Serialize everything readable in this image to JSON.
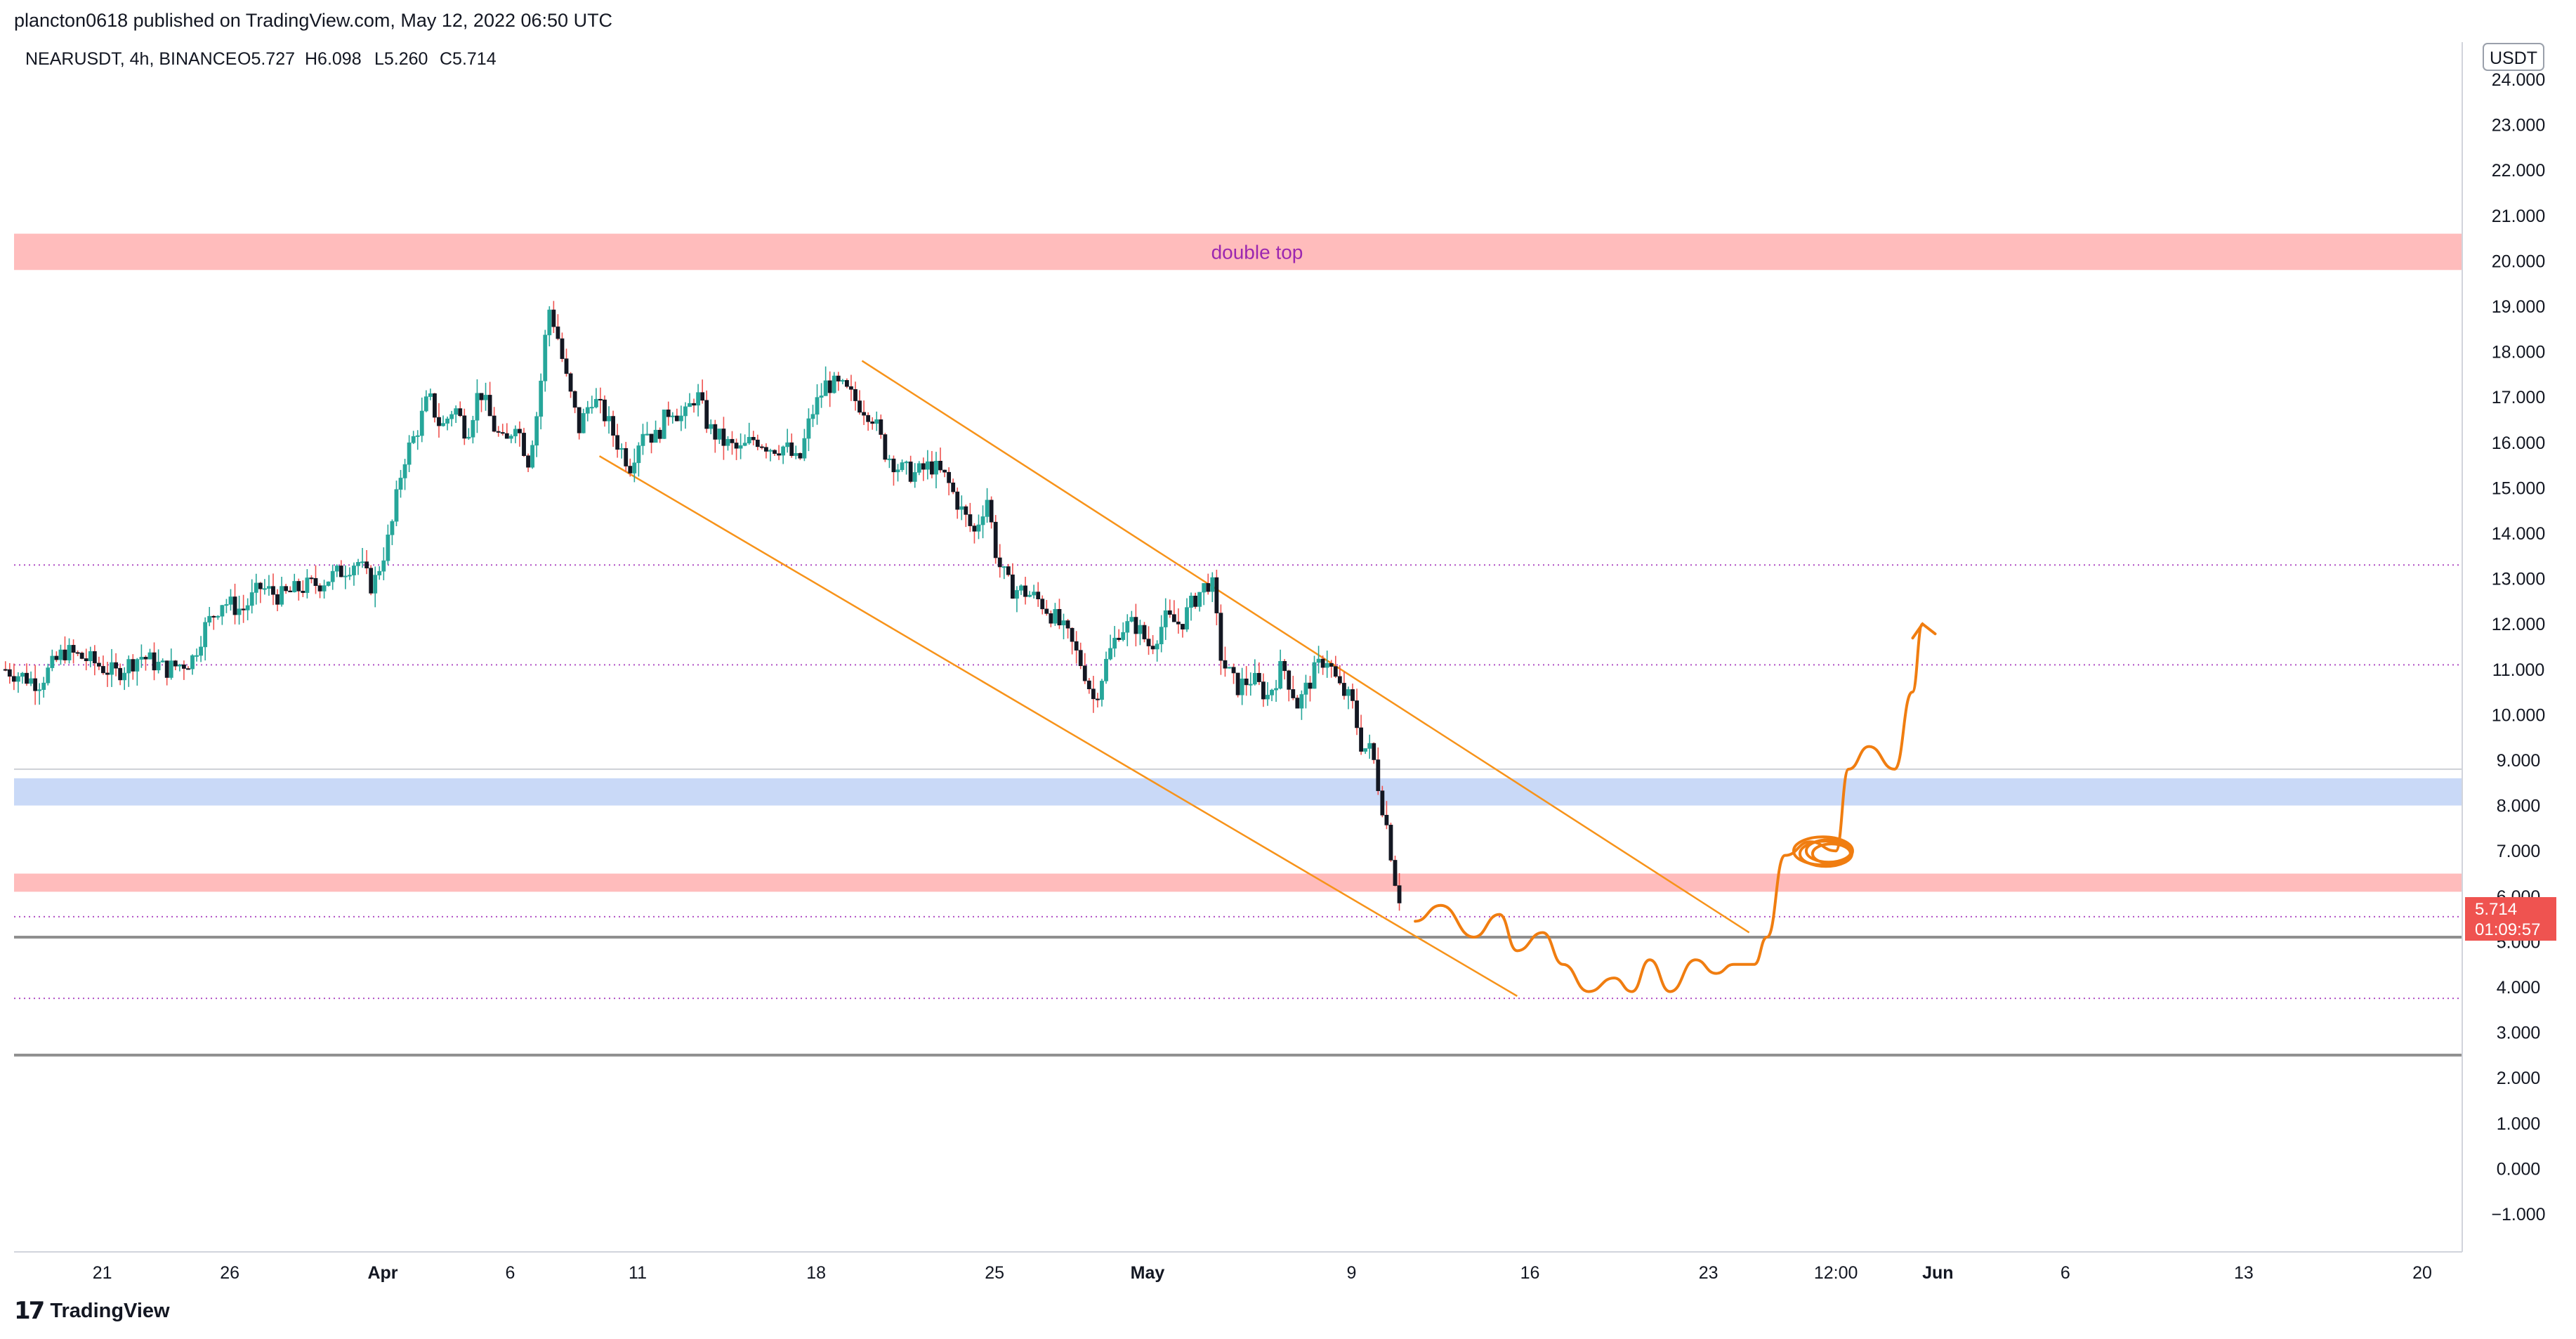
{
  "header": {
    "caption": "plancton0618 published on TradingView.com, May 12, 2022 06:50 UTC"
  },
  "legend": {
    "symbol": "NEARUSDT, 4h, BINANCE",
    "open": "O5.727",
    "high": "H6.098",
    "low": "L5.260",
    "close": "C5.714"
  },
  "price_axis": {
    "currency": "USDT",
    "last_price": "5.714",
    "countdown": "01:09:57"
  },
  "annotations": {
    "zone_label": "double top"
  },
  "footer": {
    "brand": "TradingView"
  },
  "colors": {
    "up": "#26a69a",
    "down": "#ef5350",
    "resistance_zone": "#ffbcbc",
    "support_zone": "#c9d9f7",
    "level_line": "#b04fc4",
    "channel": "#f7931a",
    "projection": "#f07d10",
    "badge": "#ef5350"
  },
  "chart_data": {
    "type": "candlestick",
    "symbol": "NEARUSDT",
    "interval": "4h",
    "ylim": [
      -1.5,
      24.5
    ],
    "yticks": [
      24,
      23,
      22,
      21,
      20,
      19,
      18,
      17,
      16,
      15,
      14,
      13,
      12,
      11,
      10,
      9,
      8,
      7,
      6,
      5,
      4,
      3,
      2,
      1,
      0,
      -1
    ],
    "ytick_labels": [
      "24.000",
      "23.000",
      "22.000",
      "21.000",
      "20.000",
      "19.000",
      "18.000",
      "17.000",
      "16.000",
      "15.000",
      "14.000",
      "13.000",
      "12.000",
      "11.000",
      "10.000",
      "9.000",
      "8.000",
      "7.000",
      "6.000",
      "5.000",
      "4.000",
      "3.000",
      "2.000",
      "1.000",
      "0.000",
      "−1.000"
    ],
    "x_ticks": [
      {
        "label": "21",
        "day": -10
      },
      {
        "label": "26",
        "day": -5
      },
      {
        "label": "Apr",
        "day": 1
      },
      {
        "label": "6",
        "day": 6
      },
      {
        "label": "11",
        "day": 11
      },
      {
        "label": "18",
        "day": 18
      },
      {
        "label": "25",
        "day": 25
      },
      {
        "label": "May",
        "day": 31
      },
      {
        "label": "9",
        "day": 39
      },
      {
        "label": "16",
        "day": 46
      },
      {
        "label": "23",
        "day": 53
      },
      {
        "label": "12:00",
        "day": 58
      },
      {
        "label": "Jun",
        "day": 62
      },
      {
        "label": "6",
        "day": 67
      },
      {
        "label": "13",
        "day": 74
      },
      {
        "label": "20",
        "day": 81
      }
    ],
    "x_axis_reference": "day 1 = Apr 1 2022",
    "close_path": [
      [
        -13.8,
        11.0
      ],
      [
        -12.5,
        10.7
      ],
      [
        -11.5,
        11.4
      ],
      [
        -10.5,
        11.2
      ],
      [
        -9.5,
        10.9
      ],
      [
        -8.5,
        11.3
      ],
      [
        -7.5,
        11.0
      ],
      [
        -6.5,
        11.2
      ],
      [
        -6.0,
        11.9
      ],
      [
        -5.3,
        12.5
      ],
      [
        -4.5,
        12.3
      ],
      [
        -3.8,
        12.8
      ],
      [
        -3.0,
        12.6
      ],
      [
        -2.2,
        12.8
      ],
      [
        -1.5,
        12.9
      ],
      [
        -0.8,
        13.1
      ],
      [
        0.0,
        13.4
      ],
      [
        0.6,
        12.8
      ],
      [
        1.3,
        14.0
      ],
      [
        1.8,
        15.6
      ],
      [
        2.3,
        16.2
      ],
      [
        2.8,
        17.0
      ],
      [
        3.3,
        16.3
      ],
      [
        3.8,
        16.8
      ],
      [
        4.3,
        16.2
      ],
      [
        4.8,
        17.2
      ],
      [
        5.3,
        16.4
      ],
      [
        5.8,
        15.9
      ],
      [
        6.2,
        16.5
      ],
      [
        6.7,
        15.6
      ],
      [
        7.1,
        16.8
      ],
      [
        7.5,
        19.0
      ],
      [
        7.8,
        18.5
      ],
      [
        8.2,
        17.4
      ],
      [
        8.7,
        16.3
      ],
      [
        9.2,
        17.0
      ],
      [
        9.7,
        16.6
      ],
      [
        10.2,
        16.0
      ],
      [
        10.7,
        15.5
      ],
      [
        11.2,
        16.3
      ],
      [
        11.7,
        16.1
      ],
      [
        12.3,
        16.8
      ],
      [
        12.8,
        16.5
      ],
      [
        13.3,
        17.1
      ],
      [
        13.8,
        16.3
      ],
      [
        14.4,
        16.0
      ],
      [
        15.0,
        15.8
      ],
      [
        15.6,
        16.1
      ],
      [
        16.2,
        15.9
      ],
      [
        16.8,
        15.9
      ],
      [
        17.3,
        15.5
      ],
      [
        17.8,
        16.6
      ],
      [
        18.4,
        17.3
      ],
      [
        19.0,
        17.2
      ],
      [
        19.6,
        16.9
      ],
      [
        20.2,
        16.6
      ],
      [
        20.7,
        15.8
      ],
      [
        21.3,
        15.4
      ],
      [
        21.9,
        15.3
      ],
      [
        22.5,
        15.5
      ],
      [
        23.1,
        15.2
      ],
      [
        23.7,
        14.5
      ],
      [
        24.2,
        14.0
      ],
      [
        24.7,
        14.8
      ],
      [
        25.1,
        13.4
      ],
      [
        25.6,
        12.8
      ],
      [
        26.2,
        12.7
      ],
      [
        26.8,
        12.5
      ],
      [
        27.4,
        12.1
      ],
      [
        27.9,
        11.7
      ],
      [
        28.5,
        11.0
      ],
      [
        28.9,
        10.3
      ],
      [
        29.4,
        11.2
      ],
      [
        29.9,
        11.9
      ],
      [
        30.5,
        12.0
      ],
      [
        31.1,
        11.5
      ],
      [
        31.7,
        12.1
      ],
      [
        32.3,
        12.0
      ],
      [
        32.9,
        12.6
      ],
      [
        33.5,
        13.0
      ],
      [
        33.9,
        11.2
      ],
      [
        34.5,
        10.6
      ],
      [
        35.1,
        10.8
      ],
      [
        35.7,
        10.4
      ],
      [
        36.3,
        11.1
      ],
      [
        36.9,
        10.2
      ],
      [
        37.5,
        10.9
      ],
      [
        38.0,
        11.3
      ],
      [
        38.5,
        10.6
      ],
      [
        39.0,
        10.3
      ],
      [
        39.4,
        9.3
      ],
      [
        39.8,
        9.2
      ],
      [
        40.1,
        8.3
      ],
      [
        40.4,
        7.5
      ],
      [
        40.7,
        6.4
      ],
      [
        41.0,
        5.71
      ]
    ],
    "projection_path": [
      [
        41.5,
        5.45
      ],
      [
        42.5,
        5.8
      ],
      [
        43.8,
        5.1
      ],
      [
        44.8,
        5.6
      ],
      [
        45.5,
        4.8
      ],
      [
        46.5,
        5.2
      ],
      [
        47.3,
        4.5
      ],
      [
        48.3,
        3.9
      ],
      [
        49.3,
        4.2
      ],
      [
        50.0,
        3.9
      ],
      [
        50.7,
        4.6
      ],
      [
        51.5,
        3.9
      ],
      [
        52.5,
        4.6
      ],
      [
        53.3,
        4.3
      ],
      [
        54.0,
        4.5
      ],
      [
        54.8,
        4.5
      ],
      [
        55.3,
        5.1
      ],
      [
        56.0,
        6.9
      ],
      [
        57.0,
        7.2
      ],
      [
        58.0,
        7.0
      ],
      [
        58.5,
        8.8
      ],
      [
        59.3,
        9.3
      ],
      [
        60.3,
        8.8
      ],
      [
        61.0,
        10.5
      ],
      [
        61.4,
        12.0
      ]
    ],
    "channel": {
      "upper": {
        "start": [
          19.8,
          17.8
        ],
        "end": [
          54.6,
          5.2
        ]
      },
      "lower": {
        "start": [
          9.5,
          15.7
        ],
        "end": [
          45.5,
          3.8
        ]
      }
    },
    "zones": [
      {
        "kind": "resistance",
        "low": 19.8,
        "high": 20.6,
        "label": "double top"
      },
      {
        "kind": "support",
        "low": 8.0,
        "high": 8.6
      },
      {
        "kind": "resistance",
        "low": 6.1,
        "high": 6.5
      }
    ],
    "horizontal_levels": [
      {
        "style": "dotted",
        "price": 13.3
      },
      {
        "style": "dotted",
        "price": 11.1
      },
      {
        "style": "solid-thin",
        "price": 8.8
      },
      {
        "style": "dotted",
        "price": 5.55
      },
      {
        "style": "solid-gray",
        "price": 5.1
      },
      {
        "style": "dotted",
        "price": 3.75
      },
      {
        "style": "solid-gray",
        "price": 2.5
      }
    ]
  }
}
